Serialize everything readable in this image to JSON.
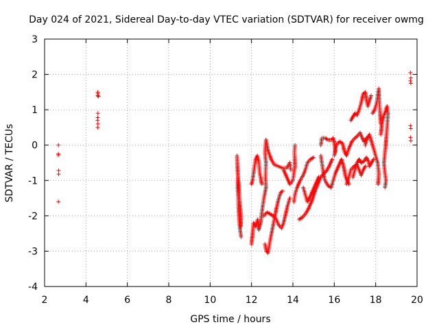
{
  "chart_data": {
    "type": "scatter",
    "title": "Day 024 of 2021, Sidereal Day-to-day VTEC variation (SDTVAR) for receiver owmg",
    "xlabel": "GPS time / hours",
    "ylabel": "SDTVAR / TECUs",
    "xlim": [
      2,
      20
    ],
    "ylim": [
      -4,
      3
    ],
    "xticks": [
      "2",
      "4",
      "6",
      "8",
      "10",
      "12",
      "14",
      "16",
      "18",
      "20"
    ],
    "yticks": [
      "3",
      "2",
      "1",
      "0",
      "-1",
      "-2",
      "-3",
      "-4"
    ],
    "xtick_values": [
      2,
      4,
      6,
      8,
      10,
      12,
      14,
      16,
      18,
      20
    ],
    "ytick_values": [
      3,
      2,
      1,
      0,
      -1,
      -2,
      -3,
      -4
    ],
    "grid": true,
    "marker": "+",
    "color": "#ff0000",
    "series": [
      {
        "name": "SDTVAR",
        "segments": [
          {
            "x": 2.67,
            "y": 0.0
          },
          {
            "x": 2.67,
            "y": -0.25
          },
          {
            "x": 2.67,
            "y": -0.28
          },
          {
            "x": 2.68,
            "y": -0.72
          },
          {
            "x": 2.68,
            "y": -0.82
          },
          {
            "x": 2.67,
            "y": -1.6
          },
          {
            "x": 4.57,
            "y": 1.5
          },
          {
            "x": 4.58,
            "y": 1.45
          },
          {
            "x": 4.57,
            "y": 1.4
          },
          {
            "x": 4.6,
            "y": 1.38
          },
          {
            "x": 4.58,
            "y": 0.9
          },
          {
            "x": 4.57,
            "y": 0.78
          },
          {
            "x": 4.56,
            "y": 0.7
          },
          {
            "x": 4.58,
            "y": 0.6
          },
          {
            "x": 4.57,
            "y": 0.5
          },
          {
            "x": 19.68,
            "y": 2.05
          },
          {
            "x": 19.7,
            "y": 1.9
          },
          {
            "x": 19.68,
            "y": 1.82
          },
          {
            "x": 19.7,
            "y": 1.75
          },
          {
            "x": 19.68,
            "y": 0.55
          },
          {
            "x": 19.7,
            "y": 0.47
          },
          {
            "x": 19.68,
            "y": 0.22
          },
          {
            "x": 19.7,
            "y": 0.12
          }
        ],
        "paths": [
          [
            [
              11.3,
              -0.3
            ],
            [
              11.32,
              -0.6
            ],
            [
              11.35,
              -0.9
            ],
            [
              11.33,
              -1.2
            ],
            [
              11.36,
              -1.5
            ],
            [
              11.38,
              -1.8
            ],
            [
              11.4,
              -2.1
            ],
            [
              11.45,
              -2.4
            ],
            [
              11.5,
              -2.6
            ]
          ],
          [
            [
              11.35,
              -0.9
            ],
            [
              11.4,
              -1.3
            ],
            [
              11.45,
              -1.7
            ],
            [
              11.5,
              -2.0
            ],
            [
              11.48,
              -2.3
            ]
          ],
          [
            [
              12.0,
              -2.8
            ],
            [
              12.05,
              -2.5
            ],
            [
              12.1,
              -2.2
            ],
            [
              12.2,
              -2.3
            ],
            [
              12.3,
              -2.1
            ],
            [
              12.35,
              -2.4
            ],
            [
              12.45,
              -2.2
            ],
            [
              12.5,
              -1.9
            ],
            [
              12.6,
              -1.5
            ],
            [
              12.7,
              -1.2
            ],
            [
              12.68,
              -0.9
            ],
            [
              12.7,
              -0.5
            ],
            [
              12.65,
              -0.2
            ],
            [
              12.7,
              0.15
            ]
          ],
          [
            [
              12.0,
              -1.1
            ],
            [
              12.05,
              -1.0
            ],
            [
              12.12,
              -0.7
            ],
            [
              12.2,
              -0.4
            ],
            [
              12.28,
              -0.3
            ],
            [
              12.35,
              -0.45
            ],
            [
              12.4,
              -0.8
            ],
            [
              12.5,
              -1.1
            ]
          ],
          [
            [
              12.65,
              -2.8
            ],
            [
              12.72,
              -3.0
            ],
            [
              12.8,
              -3.05
            ],
            [
              12.9,
              -2.7
            ],
            [
              13.0,
              -2.4
            ],
            [
              13.1,
              -2.1
            ],
            [
              13.2,
              -1.8
            ],
            [
              13.3,
              -1.55
            ],
            [
              13.4,
              -1.35
            ],
            [
              13.5,
              -1.3
            ]
          ],
          [
            [
              12.6,
              -2.0
            ],
            [
              12.75,
              -1.9
            ],
            [
              12.9,
              -1.95
            ],
            [
              13.05,
              -2.0
            ],
            [
              13.2,
              -2.1
            ],
            [
              13.3,
              -2.25
            ],
            [
              13.45,
              -2.35
            ],
            [
              13.55,
              -2.2
            ],
            [
              13.65,
              -1.95
            ],
            [
              13.75,
              -1.7
            ],
            [
              13.85,
              -1.5
            ]
          ],
          [
            [
              12.7,
              0.15
            ],
            [
              12.8,
              -0.15
            ],
            [
              12.95,
              -0.4
            ],
            [
              13.1,
              -0.55
            ],
            [
              13.3,
              -0.6
            ],
            [
              13.5,
              -0.65
            ],
            [
              13.7,
              -0.65
            ],
            [
              13.85,
              -0.5
            ],
            [
              13.9,
              -0.7
            ]
          ],
          [
            [
              13.55,
              -0.7
            ],
            [
              13.7,
              -0.9
            ],
            [
              13.85,
              -1.1
            ],
            [
              14.0,
              -1.0
            ],
            [
              14.1,
              -0.6
            ],
            [
              14.08,
              -0.2
            ],
            [
              14.1,
              0.0
            ]
          ],
          [
            [
              14.05,
              -1.6
            ],
            [
              14.1,
              -1.4
            ],
            [
              14.2,
              -1.2
            ],
            [
              14.35,
              -1.0
            ],
            [
              14.5,
              -0.85
            ],
            [
              14.6,
              -0.7
            ],
            [
              14.7,
              -0.5
            ],
            [
              14.85,
              -0.4
            ],
            [
              15.0,
              -0.35
            ]
          ],
          [
            [
              14.3,
              -2.1
            ],
            [
              14.45,
              -2.05
            ],
            [
              14.6,
              -1.95
            ],
            [
              14.75,
              -1.8
            ],
            [
              14.9,
              -1.6
            ],
            [
              15.05,
              -1.35
            ],
            [
              15.2,
              -1.1
            ],
            [
              15.35,
              -0.9
            ],
            [
              15.5,
              -0.8
            ],
            [
              15.6,
              -0.75
            ],
            [
              15.75,
              -0.6
            ],
            [
              15.9,
              -0.4
            ]
          ],
          [
            [
              14.5,
              -1.2
            ],
            [
              14.6,
              -1.4
            ],
            [
              14.7,
              -1.6
            ],
            [
              14.8,
              -1.5
            ],
            [
              14.95,
              -1.3
            ],
            [
              15.1,
              -1.1
            ],
            [
              15.25,
              -0.9
            ]
          ],
          [
            [
              15.35,
              0.0
            ],
            [
              15.4,
              0.2
            ],
            [
              15.55,
              0.2
            ],
            [
              15.7,
              0.15
            ],
            [
              15.85,
              0.15
            ],
            [
              15.95,
              0.2
            ],
            [
              16.0,
              0.1
            ],
            [
              16.05,
              -0.2
            ]
          ],
          [
            [
              15.35,
              -0.3
            ],
            [
              15.45,
              -0.7
            ],
            [
              15.55,
              -1.0
            ],
            [
              15.7,
              -1.15
            ],
            [
              15.85,
              -1.2
            ],
            [
              15.95,
              -1.0
            ],
            [
              16.05,
              -0.8
            ],
            [
              16.2,
              -0.6
            ],
            [
              16.35,
              -0.4
            ],
            [
              16.45,
              -0.6
            ],
            [
              16.55,
              -0.9
            ],
            [
              16.7,
              -1.1
            ]
          ],
          [
            [
              16.0,
              -0.3
            ],
            [
              16.1,
              0.0
            ],
            [
              16.25,
              0.1
            ],
            [
              16.4,
              0.05
            ],
            [
              16.5,
              -0.2
            ],
            [
              16.6,
              -0.3
            ],
            [
              16.7,
              -0.1
            ],
            [
              16.85,
              0.1
            ],
            [
              17.0,
              0.2
            ],
            [
              17.1,
              0.25
            ],
            [
              17.25,
              0.35
            ],
            [
              17.35,
              0.2
            ],
            [
              17.45,
              0.1
            ],
            [
              17.55,
              0.2
            ]
          ],
          [
            [
              16.8,
              0.7
            ],
            [
              16.9,
              0.8
            ],
            [
              17.0,
              0.9
            ],
            [
              17.1,
              0.85
            ],
            [
              17.2,
              1.0
            ],
            [
              17.3,
              1.2
            ],
            [
              17.4,
              1.45
            ],
            [
              17.5,
              1.5
            ],
            [
              17.55,
              1.3
            ],
            [
              17.62,
              1.1
            ],
            [
              17.7,
              1.25
            ],
            [
              17.78,
              1.4
            ]
          ],
          [
            [
              16.9,
              -0.9
            ],
            [
              17.0,
              -0.7
            ],
            [
              17.1,
              -0.5
            ],
            [
              17.2,
              -0.4
            ],
            [
              17.3,
              -0.5
            ],
            [
              17.45,
              -0.45
            ],
            [
              17.55,
              -0.35
            ],
            [
              17.65,
              -0.45
            ],
            [
              17.7,
              -0.6
            ],
            [
              17.8,
              -0.5
            ],
            [
              17.9,
              -0.4
            ]
          ],
          [
            [
              17.5,
              0.0
            ],
            [
              17.6,
              0.2
            ],
            [
              17.7,
              0.3
            ],
            [
              17.8,
              0.1
            ],
            [
              17.9,
              -0.1
            ],
            [
              18.0,
              -0.3
            ],
            [
              18.1,
              -0.5
            ],
            [
              18.15,
              -0.8
            ],
            [
              18.12,
              -1.1
            ]
          ],
          [
            [
              17.85,
              0.9
            ],
            [
              17.95,
              1.0
            ],
            [
              18.05,
              1.2
            ],
            [
              18.1,
              1.4
            ],
            [
              18.15,
              1.6
            ],
            [
              18.2,
              1.0
            ],
            [
              18.25,
              0.6
            ]
          ],
          [
            [
              18.25,
              0.3
            ],
            [
              18.3,
              0.6
            ],
            [
              18.4,
              0.85
            ],
            [
              18.5,
              1.0
            ],
            [
              18.55,
              1.1
            ],
            [
              18.6,
              0.9
            ],
            [
              18.55,
              0.5
            ],
            [
              18.5,
              0.1
            ],
            [
              18.45,
              -0.2
            ],
            [
              18.4,
              -0.5
            ],
            [
              18.45,
              -0.8
            ],
            [
              18.5,
              -1.0
            ],
            [
              18.45,
              -1.2
            ]
          ],
          [
            [
              16.6,
              -1.1
            ],
            [
              16.7,
              -0.9
            ],
            [
              16.8,
              -0.7
            ],
            [
              16.95,
              -0.6
            ],
            [
              17.1,
              -0.55
            ],
            [
              17.2,
              -0.7
            ],
            [
              17.3,
              -0.85
            ],
            [
              17.4,
              -0.7
            ],
            [
              17.5,
              -0.6
            ]
          ]
        ]
      }
    ]
  }
}
